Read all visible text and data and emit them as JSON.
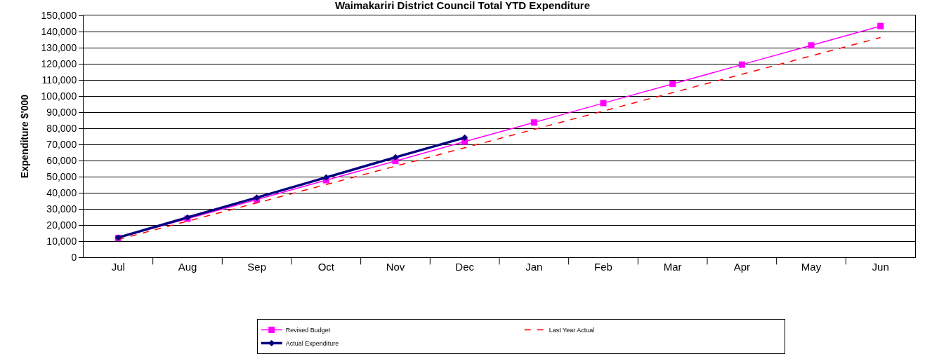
{
  "chart_data": {
    "type": "line",
    "title": "Waimakariri District Council Total YTD Expenditure",
    "ylabel": "Expenditure $'000",
    "categories": [
      "Jul",
      "Aug",
      "Sep",
      "Oct",
      "Nov",
      "Dec",
      "Jan",
      "Feb",
      "Mar",
      "Apr",
      "May",
      "Jun"
    ],
    "series": [
      {
        "name": "Revised Budget",
        "color": "#ff00ff",
        "marker": "square",
        "line_style": "solid",
        "values": [
          12000,
          23900,
          35800,
          47800,
          59700,
          71700,
          83600,
          95600,
          107500,
          119500,
          131400,
          143400
        ]
      },
      {
        "name": "Last Year Actual",
        "color": "#ff0000",
        "marker": "none",
        "line_style": "dashed",
        "values": [
          11000,
          22400,
          33700,
          45100,
          56500,
          67900,
          79300,
          90700,
          102100,
          113500,
          124900,
          136300
        ]
      },
      {
        "name": "Actual Expenditure",
        "color": "#000080",
        "marker": "diamond",
        "line_style": "solid",
        "values": [
          12200,
          24700,
          37000,
          49500,
          62000,
          74200,
          null,
          null,
          null,
          null,
          null,
          null
        ]
      }
    ],
    "ylim": [
      0,
      150000
    ],
    "yticks": [
      {
        "value": 0,
        "label": "0"
      },
      {
        "value": 10000,
        "label": "10,000"
      },
      {
        "value": 20000,
        "label": "20,000"
      },
      {
        "value": 30000,
        "label": "30,000"
      },
      {
        "value": 40000,
        "label": "40,000"
      },
      {
        "value": 50000,
        "label": "50,000"
      },
      {
        "value": 60000,
        "label": "60,000"
      },
      {
        "value": 70000,
        "label": "70,000"
      },
      {
        "value": 80000,
        "label": "80,000"
      },
      {
        "value": 90000,
        "label": "90,000"
      },
      {
        "value": 100000,
        "label": "100,000"
      },
      {
        "value": 110000,
        "label": "110,000"
      },
      {
        "value": 120000,
        "label": "120,000"
      },
      {
        "value": 130000,
        "label": "130,000"
      },
      {
        "value": 140000,
        "label": "140,000"
      },
      {
        "value": 150000,
        "label": "150,000"
      }
    ],
    "grid": "y",
    "legend": "bottom"
  }
}
